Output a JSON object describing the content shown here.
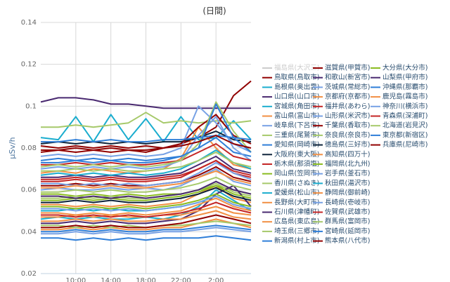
{
  "chart_data": {
    "type": "line",
    "title": "(日間)",
    "y_label": "μSv/h",
    "x": [
      6,
      8,
      10,
      12,
      14,
      16,
      18,
      20,
      22,
      24,
      26,
      28,
      30
    ],
    "xlim": [
      6,
      30
    ],
    "xticks": [
      {
        "value": 10,
        "label": "10:00"
      },
      {
        "value": 14,
        "label": "14:00"
      },
      {
        "value": 18,
        "label": "18:00"
      },
      {
        "value": 22,
        "label": "22:00"
      },
      {
        "value": 26,
        "label": "2:00"
      }
    ],
    "ylim": [
      0.02,
      0.14
    ],
    "yticks": [
      0.02,
      0.04,
      0.06,
      0.08,
      0.1,
      0.12,
      0.14
    ],
    "grid": true,
    "legend": "right",
    "series": [
      {
        "name": "福島県(大沢三)",
        "color": "#8bbc21",
        "visible": false,
        "values": [
          null,
          null,
          null,
          null,
          null,
          null,
          null,
          null,
          null,
          null,
          null,
          null,
          null
        ]
      },
      {
        "name": "鳥取県(鳥取市)",
        "color": "#910000",
        "values": [
          0.078,
          0.079,
          0.078,
          0.079,
          0.078,
          0.079,
          0.078,
          0.08,
          0.082,
          0.085,
          0.09,
          0.105,
          0.112
        ]
      },
      {
        "name": "島根県(奥出雲)",
        "color": "#1aadce",
        "values": [
          0.046,
          0.047,
          0.046,
          0.047,
          0.046,
          0.046,
          0.047,
          0.046,
          0.048,
          0.052,
          0.06,
          0.055,
          0.05
        ]
      },
      {
        "name": "山口県(山口市)",
        "color": "#492970",
        "values": [
          0.102,
          0.104,
          0.104,
          0.103,
          0.101,
          0.101,
          0.1,
          0.099,
          0.099,
          0.099,
          0.099,
          0.099,
          0.099
        ]
      },
      {
        "name": "宮城県(角田市)",
        "color": "#1aadce",
        "values": [
          0.085,
          0.084,
          0.095,
          0.083,
          0.096,
          0.084,
          0.094,
          0.083,
          0.095,
          0.084,
          0.085,
          0.093,
          0.084
        ]
      },
      {
        "name": "富山県(富山市)",
        "color": "#f28f43",
        "values": [
          0.068,
          0.069,
          0.068,
          0.07,
          0.069,
          0.068,
          0.069,
          0.07,
          0.075,
          0.09,
          0.08,
          0.072,
          0.07
        ]
      },
      {
        "name": "岐阜県(下呂市)",
        "color": "#77a1e5",
        "values": [
          0.06,
          0.061,
          0.06,
          0.06,
          0.061,
          0.06,
          0.061,
          0.06,
          0.062,
          0.066,
          0.07,
          0.064,
          0.062
        ]
      },
      {
        "name": "三重県(尾鷲市)",
        "color": "#a6c96a",
        "values": [
          0.09,
          0.09,
          0.091,
          0.09,
          0.091,
          0.092,
          0.097,
          0.092,
          0.093,
          0.092,
          0.093,
          0.092,
          0.093
        ]
      },
      {
        "name": "愛知県(岡崎市)",
        "color": "#2f7ed8",
        "values": [
          0.074,
          0.075,
          0.074,
          0.075,
          0.074,
          0.075,
          0.074,
          0.075,
          0.076,
          0.08,
          0.085,
          0.078,
          0.076
        ]
      },
      {
        "name": "大阪府(東大阪)",
        "color": "#0d233a",
        "values": [
          0.082,
          0.083,
          0.082,
          0.083,
          0.082,
          0.083,
          0.082,
          0.083,
          0.083,
          0.085,
          0.088,
          0.084,
          0.083
        ]
      },
      {
        "name": "栃木県(那須塩)",
        "color": "#c42525",
        "values": [
          0.064,
          0.064,
          0.065,
          0.064,
          0.065,
          0.064,
          0.064,
          0.065,
          0.066,
          0.07,
          0.074,
          0.068,
          0.066
        ]
      },
      {
        "name": "岡山県(笠岡市)",
        "color": "#8bbc21",
        "values": [
          0.058,
          0.058,
          0.057,
          0.058,
          0.057,
          0.058,
          0.057,
          0.058,
          0.058,
          0.06,
          0.062,
          0.06,
          0.058
        ]
      },
      {
        "name": "香川県(さぬき)",
        "color": "#a6c96a",
        "values": [
          0.056,
          0.056,
          0.057,
          0.056,
          0.057,
          0.056,
          0.056,
          0.057,
          0.058,
          0.06,
          0.063,
          0.059,
          0.057
        ]
      },
      {
        "name": "愛媛県(松山市)",
        "color": "#1aadce",
        "values": [
          0.05,
          0.05,
          0.051,
          0.05,
          0.051,
          0.05,
          0.05,
          0.051,
          0.052,
          0.054,
          0.057,
          0.053,
          0.051
        ]
      },
      {
        "name": "長野県(大町市)",
        "color": "#f28f43",
        "values": [
          0.053,
          0.053,
          0.052,
          0.053,
          0.052,
          0.053,
          0.052,
          0.053,
          0.054,
          0.058,
          0.062,
          0.056,
          0.054
        ]
      },
      {
        "name": "石川県(津幡町)",
        "color": "#492970",
        "values": [
          0.044,
          0.044,
          0.045,
          0.044,
          0.045,
          0.044,
          0.044,
          0.045,
          0.046,
          0.05,
          0.058,
          0.062,
          0.052
        ]
      },
      {
        "name": "広島県(東広島)",
        "color": "#f28f43",
        "values": [
          0.041,
          0.041,
          0.042,
          0.041,
          0.042,
          0.041,
          0.041,
          0.042,
          0.042,
          0.044,
          0.046,
          0.044,
          0.042
        ]
      },
      {
        "name": "埼玉県(三郷市)",
        "color": "#a6c96a",
        "values": [
          0.043,
          0.043,
          0.042,
          0.043,
          0.042,
          0.043,
          0.042,
          0.043,
          0.043,
          0.044,
          0.045,
          0.044,
          0.043
        ]
      },
      {
        "name": "新潟県(村上市)",
        "color": "#2f7ed8",
        "values": [
          0.037,
          0.037,
          0.036,
          0.037,
          0.036,
          0.037,
          0.036,
          0.037,
          0.037,
          0.037,
          0.038,
          0.037,
          0.036
        ]
      },
      {
        "name": "滋賀県(甲賀市)",
        "color": "#910000",
        "values": [
          0.062,
          0.062,
          0.063,
          0.062,
          0.063,
          0.062,
          0.062,
          0.063,
          0.064,
          0.067,
          0.071,
          0.066,
          0.064
        ]
      },
      {
        "name": "和歌山(新宮市)",
        "color": "#492970",
        "values": [
          0.066,
          0.066,
          0.067,
          0.066,
          0.067,
          0.066,
          0.066,
          0.067,
          0.068,
          0.072,
          0.076,
          0.07,
          0.068
        ]
      },
      {
        "name": "茨城県(常総市)",
        "color": "#77a1e5",
        "values": [
          0.07,
          0.071,
          0.07,
          0.071,
          0.07,
          0.071,
          0.07,
          0.071,
          0.074,
          0.086,
          0.095,
          0.08,
          0.074
        ]
      },
      {
        "name": "京都府(京都市)",
        "color": "#f28f43",
        "values": [
          0.049,
          0.049,
          0.048,
          0.049,
          0.048,
          0.049,
          0.048,
          0.049,
          0.05,
          0.053,
          0.056,
          0.052,
          0.05
        ]
      },
      {
        "name": "福井県(あわら)",
        "color": "#c42525",
        "values": [
          0.072,
          0.072,
          0.073,
          0.072,
          0.073,
          0.072,
          0.072,
          0.073,
          0.074,
          0.078,
          0.082,
          0.076,
          0.074
        ]
      },
      {
        "name": "山形県(米沢市)",
        "color": "#77a1e5",
        "values": [
          0.076,
          0.077,
          0.076,
          0.077,
          0.076,
          0.077,
          0.076,
          0.077,
          0.08,
          0.1,
          0.092,
          0.082,
          0.078
        ]
      },
      {
        "name": "千葉県(香取市)",
        "color": "#910000",
        "values": [
          0.081,
          0.08,
          0.081,
          0.08,
          0.081,
          0.08,
          0.081,
          0.08,
          0.082,
          0.09,
          0.096,
          0.086,
          0.082
        ]
      },
      {
        "name": "奈良県(奈良市)",
        "color": "#a6c96a",
        "values": [
          0.059,
          0.059,
          0.06,
          0.059,
          0.06,
          0.059,
          0.059,
          0.06,
          0.061,
          0.063,
          0.066,
          0.062,
          0.06
        ]
      },
      {
        "name": "徳島県(三好市)",
        "color": "#0d233a",
        "values": [
          0.054,
          0.054,
          0.055,
          0.054,
          0.055,
          0.054,
          0.054,
          0.055,
          0.056,
          0.058,
          0.061,
          0.057,
          0.055
        ]
      },
      {
        "name": "高知県(四万十)",
        "color": "#f28f43",
        "values": [
          0.047,
          0.047,
          0.048,
          0.047,
          0.048,
          0.047,
          0.047,
          0.048,
          0.048,
          0.05,
          0.052,
          0.049,
          0.048
        ]
      },
      {
        "name": "福岡県(北九州)",
        "color": "#8bbc21",
        "values": [
          0.052,
          0.052,
          0.051,
          0.052,
          0.051,
          0.052,
          0.051,
          0.052,
          0.053,
          0.055,
          0.058,
          0.054,
          0.052
        ]
      },
      {
        "name": "岩手県(釜石市)",
        "color": "#77a1e5",
        "values": [
          0.063,
          0.063,
          0.062,
          0.063,
          0.062,
          0.063,
          0.062,
          0.063,
          0.064,
          0.068,
          0.073,
          0.068,
          0.065
        ]
      },
      {
        "name": "秋田県(湯沢市)",
        "color": "#1aadce",
        "values": [
          0.067,
          0.068,
          0.067,
          0.068,
          0.067,
          0.068,
          0.067,
          0.068,
          0.07,
          0.074,
          0.079,
          0.073,
          0.07
        ]
      },
      {
        "name": "静岡県(御前崎)",
        "color": "#f28f43",
        "values": [
          0.045,
          0.045,
          0.046,
          0.045,
          0.046,
          0.045,
          0.045,
          0.046,
          0.046,
          0.048,
          0.05,
          0.047,
          0.046
        ]
      },
      {
        "name": "長崎県(壱岐市)",
        "color": "#77a1e5",
        "values": [
          0.039,
          0.039,
          0.04,
          0.039,
          0.04,
          0.039,
          0.039,
          0.04,
          0.04,
          0.041,
          0.042,
          0.041,
          0.04
        ]
      },
      {
        "name": "佐賀県(武雄市)",
        "color": "#c42525",
        "values": [
          0.048,
          0.048,
          0.047,
          0.048,
          0.047,
          0.048,
          0.047,
          0.048,
          0.049,
          0.051,
          0.054,
          0.051,
          0.049
        ]
      },
      {
        "name": "群馬県(富岡市)",
        "color": "#a6c96a",
        "values": [
          0.071,
          0.072,
          0.071,
          0.072,
          0.071,
          0.072,
          0.071,
          0.072,
          0.074,
          0.082,
          0.102,
          0.088,
          0.078
        ]
      },
      {
        "name": "宮崎県(延岡市)",
        "color": "#2f7ed8",
        "values": [
          0.04,
          0.04,
          0.041,
          0.04,
          0.041,
          0.04,
          0.04,
          0.041,
          0.041,
          0.042,
          0.043,
          0.042,
          0.041
        ]
      },
      {
        "name": "熊本県(八代市)",
        "color": "#910000",
        "values": [
          0.042,
          0.042,
          0.043,
          0.042,
          0.043,
          0.042,
          0.042,
          0.043,
          0.044,
          0.046,
          0.048,
          0.046,
          0.044
        ]
      },
      {
        "name": "大分県(大分市)",
        "color": "#8bbc21",
        "values": [
          0.055,
          0.055,
          0.056,
          0.055,
          0.056,
          0.055,
          0.055,
          0.056,
          0.057,
          0.059,
          0.062,
          0.058,
          0.056
        ]
      },
      {
        "name": "山梨県(甲府市)",
        "color": "#492970",
        "values": [
          0.057,
          0.057,
          0.056,
          0.057,
          0.056,
          0.057,
          0.056,
          0.057,
          0.058,
          0.06,
          0.064,
          0.06,
          0.058
        ]
      },
      {
        "name": "沖縄県(那覇市)",
        "color": "#2f7ed8",
        "values": [
          0.083,
          0.083,
          0.084,
          0.083,
          0.084,
          0.083,
          0.083,
          0.084,
          0.084,
          0.085,
          0.086,
          0.085,
          0.084
        ]
      },
      {
        "name": "鹿児島(霧島市)",
        "color": "#f28f43",
        "values": [
          0.061,
          0.061,
          0.062,
          0.061,
          0.062,
          0.061,
          0.061,
          0.062,
          0.063,
          0.066,
          0.069,
          0.065,
          0.063
        ]
      },
      {
        "name": "神奈川(横浜市)",
        "color": "#77a1e5",
        "values": [
          0.051,
          0.051,
          0.05,
          0.051,
          0.05,
          0.051,
          0.05,
          0.051,
          0.052,
          0.054,
          0.057,
          0.053,
          0.051
        ]
      },
      {
        "name": "青森県(深浦町)",
        "color": "#c42525",
        "values": [
          0.065,
          0.065,
          0.066,
          0.065,
          0.066,
          0.065,
          0.065,
          0.066,
          0.067,
          0.07,
          0.074,
          0.069,
          0.067
        ]
      },
      {
        "name": "北海道(岩見沢)",
        "color": "#a6c96a",
        "values": [
          0.069,
          0.069,
          0.07,
          0.069,
          0.07,
          0.069,
          0.069,
          0.07,
          0.071,
          0.074,
          0.078,
          0.073,
          0.071
        ]
      },
      {
        "name": "東京都(新宿区)",
        "color": "#2f7ed8",
        "values": [
          0.073,
          0.073,
          0.074,
          0.073,
          0.074,
          0.073,
          0.073,
          0.074,
          0.076,
          0.08,
          0.101,
          0.085,
          0.078
        ]
      },
      {
        "name": "兵庫県(尼崎市)",
        "color": "#910000",
        "values": [
          0.079,
          0.079,
          0.08,
          0.079,
          0.08,
          0.079,
          0.079,
          0.08,
          0.081,
          0.083,
          0.086,
          0.082,
          0.08
        ]
      }
    ]
  }
}
